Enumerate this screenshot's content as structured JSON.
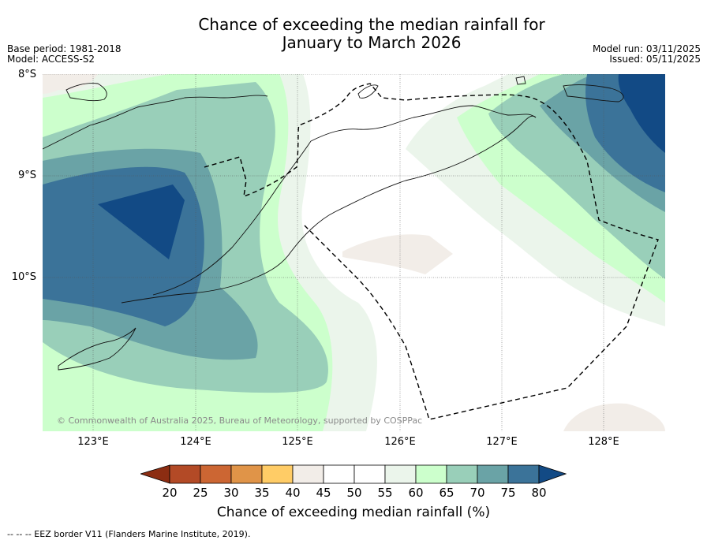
{
  "title": {
    "line1": "Chance of exceeding the median rainfall for",
    "line2": "January to March 2026"
  },
  "meta": {
    "base_period": "Base period: 1981-2018",
    "model": "Model: ACCESS-S2",
    "model_run": "Model run: 03/11/2025",
    "issued": "Issued: 05/11/2025"
  },
  "axes": {
    "lat_labels": [
      "8°S",
      "9°S",
      "10°S"
    ],
    "lon_labels": [
      "123°E",
      "124°E",
      "125°E",
      "126°E",
      "127°E",
      "128°E"
    ]
  },
  "copyright": "© Commonwealth of Australia 2025, Bureau of Meteorology, supported by COSPPac",
  "colorbar": {
    "title": "Chance of exceeding median rainfall (%)",
    "tick_labels": [
      "20",
      "25",
      "30",
      "35",
      "40",
      "45",
      "50",
      "55",
      "60",
      "65",
      "70",
      "75",
      "80"
    ],
    "colors": [
      "#8c2d12",
      "#b34a26",
      "#cc6633",
      "#e09448",
      "#ffcc66",
      "#f2ede8",
      "#ffffff",
      "#ffffff",
      "#ebf5eb",
      "#ccffcc",
      "#99cfb9",
      "#6aa3a6",
      "#3b7399",
      "#124a85"
    ]
  },
  "footnote": "-- -- -- EEZ border V11 (Flanders Marine Institute, 2019).",
  "chart_data": {
    "type": "heatmap",
    "title": "Chance of exceeding the median rainfall for January to March 2026",
    "lat_range": [
      -11.5,
      -8.0
    ],
    "lon_range": [
      122.5,
      128.6
    ],
    "lat_ticks": [
      -8,
      -9,
      -10
    ],
    "lon_ticks": [
      123,
      124,
      125,
      126,
      127,
      128
    ],
    "colorbar_levels": [
      20,
      25,
      30,
      35,
      40,
      45,
      50,
      55,
      60,
      65,
      70,
      75,
      80
    ],
    "legend": "EEZ border V11 (Flanders Marine Institute, 2019)"
  }
}
